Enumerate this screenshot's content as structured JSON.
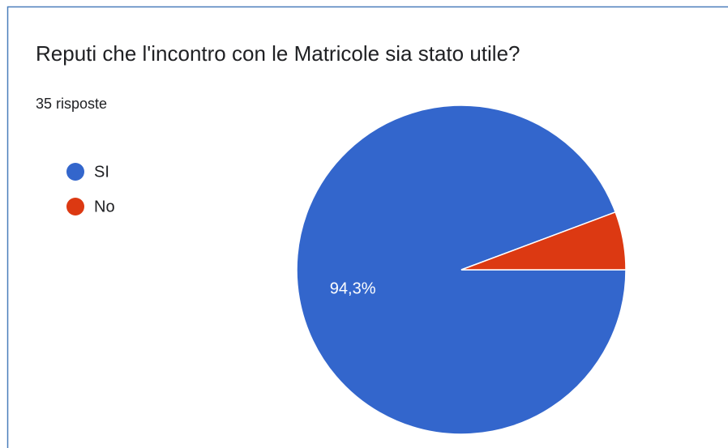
{
  "chart_data": {
    "type": "pie",
    "title": "Reputi che l'incontro con le Matricole sia stato utile?",
    "subtitle": "35 risposte",
    "categories": [
      "SI",
      "No"
    ],
    "values": [
      94.3,
      5.7
    ],
    "value_labels": [
      "94,3%",
      null
    ],
    "colors": [
      "#3366cc",
      "#dc3912"
    ],
    "legend": "left"
  }
}
